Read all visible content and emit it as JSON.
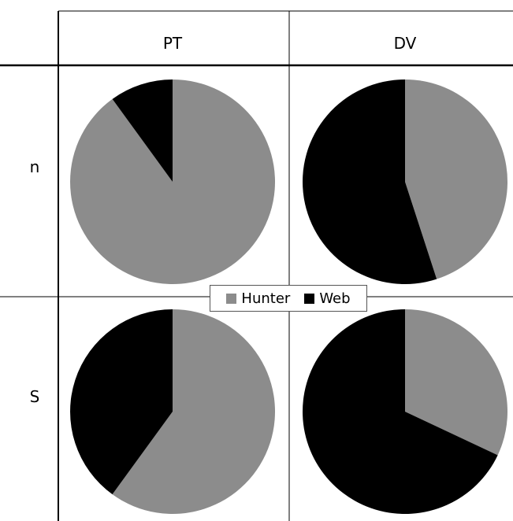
{
  "chart_data": {
    "type": "pie",
    "columns": [
      "PT",
      "DV"
    ],
    "rows": [
      "n",
      "S"
    ],
    "legend": {
      "placement": "center",
      "entries": [
        {
          "name": "Hunter",
          "color": "#8c8c8c"
        },
        {
          "name": "Web",
          "color": "#000000"
        }
      ]
    },
    "pies": [
      {
        "row": "n",
        "column": "PT",
        "slices": [
          {
            "name": "Hunter",
            "value": 0.9
          },
          {
            "name": "Web",
            "value": 0.1
          }
        ]
      },
      {
        "row": "n",
        "column": "DV",
        "slices": [
          {
            "name": "Hunter",
            "value": 0.45
          },
          {
            "name": "Web",
            "value": 0.55
          }
        ]
      },
      {
        "row": "S",
        "column": "PT",
        "slices": [
          {
            "name": "Hunter",
            "value": 0.6
          },
          {
            "name": "Web",
            "value": 0.4
          }
        ]
      },
      {
        "row": "S",
        "column": "DV",
        "slices": [
          {
            "name": "Hunter",
            "value": 0.32
          },
          {
            "name": "Web",
            "value": 0.68
          }
        ]
      }
    ]
  }
}
